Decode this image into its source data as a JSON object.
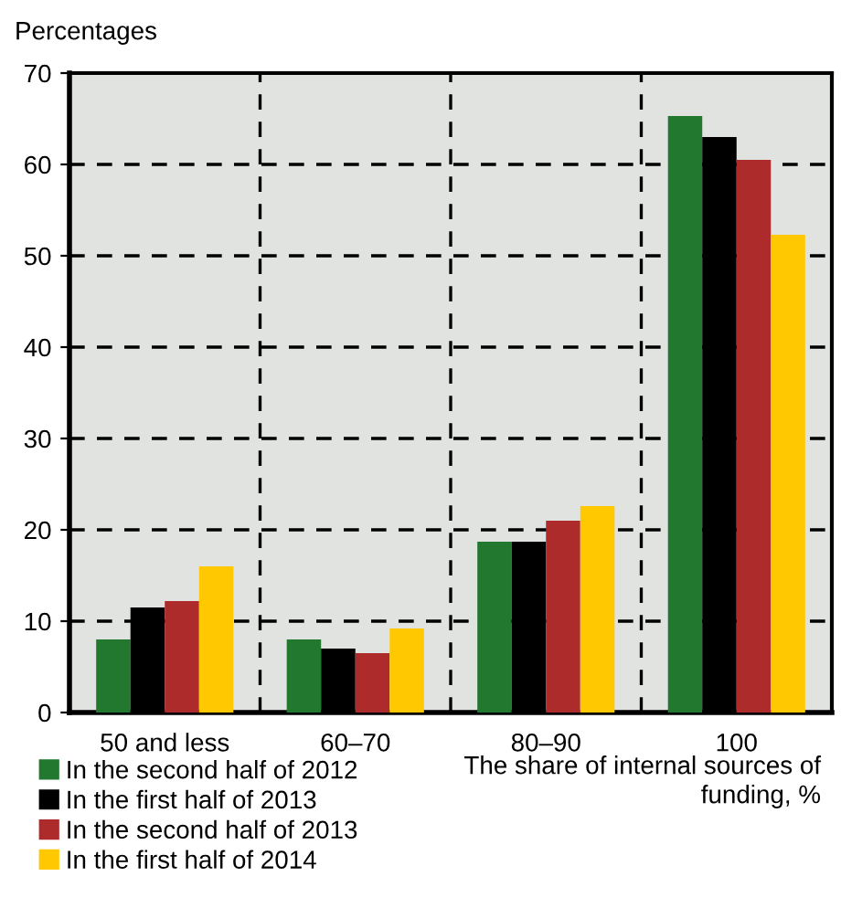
{
  "chart_data": {
    "type": "bar",
    "ylabel": "Percentages",
    "xlabel": "The share of internal sources of\nfunding, %",
    "categories": [
      "50 and less",
      "60–70",
      "80–90",
      "100"
    ],
    "series": [
      {
        "name": "In the second half of 2012",
        "color": "#237830",
        "values": [
          8,
          8,
          18.7,
          65.3
        ]
      },
      {
        "name": "In the first half of 2013",
        "color": "#000000",
        "values": [
          11.5,
          7,
          18.7,
          63
        ]
      },
      {
        "name": "In the second half of 2013",
        "color": "#ae2b2c",
        "values": [
          12.2,
          6.5,
          21,
          60.5
        ]
      },
      {
        "name": "In the first half of 2014",
        "color": "#ffc800",
        "values": [
          16,
          9.2,
          22.6,
          52.3
        ]
      }
    ],
    "ylim": [
      0,
      70
    ],
    "yticks": [
      0,
      10,
      20,
      30,
      40,
      50,
      60,
      70
    ],
    "grid": true,
    "legend": "bottom left"
  }
}
